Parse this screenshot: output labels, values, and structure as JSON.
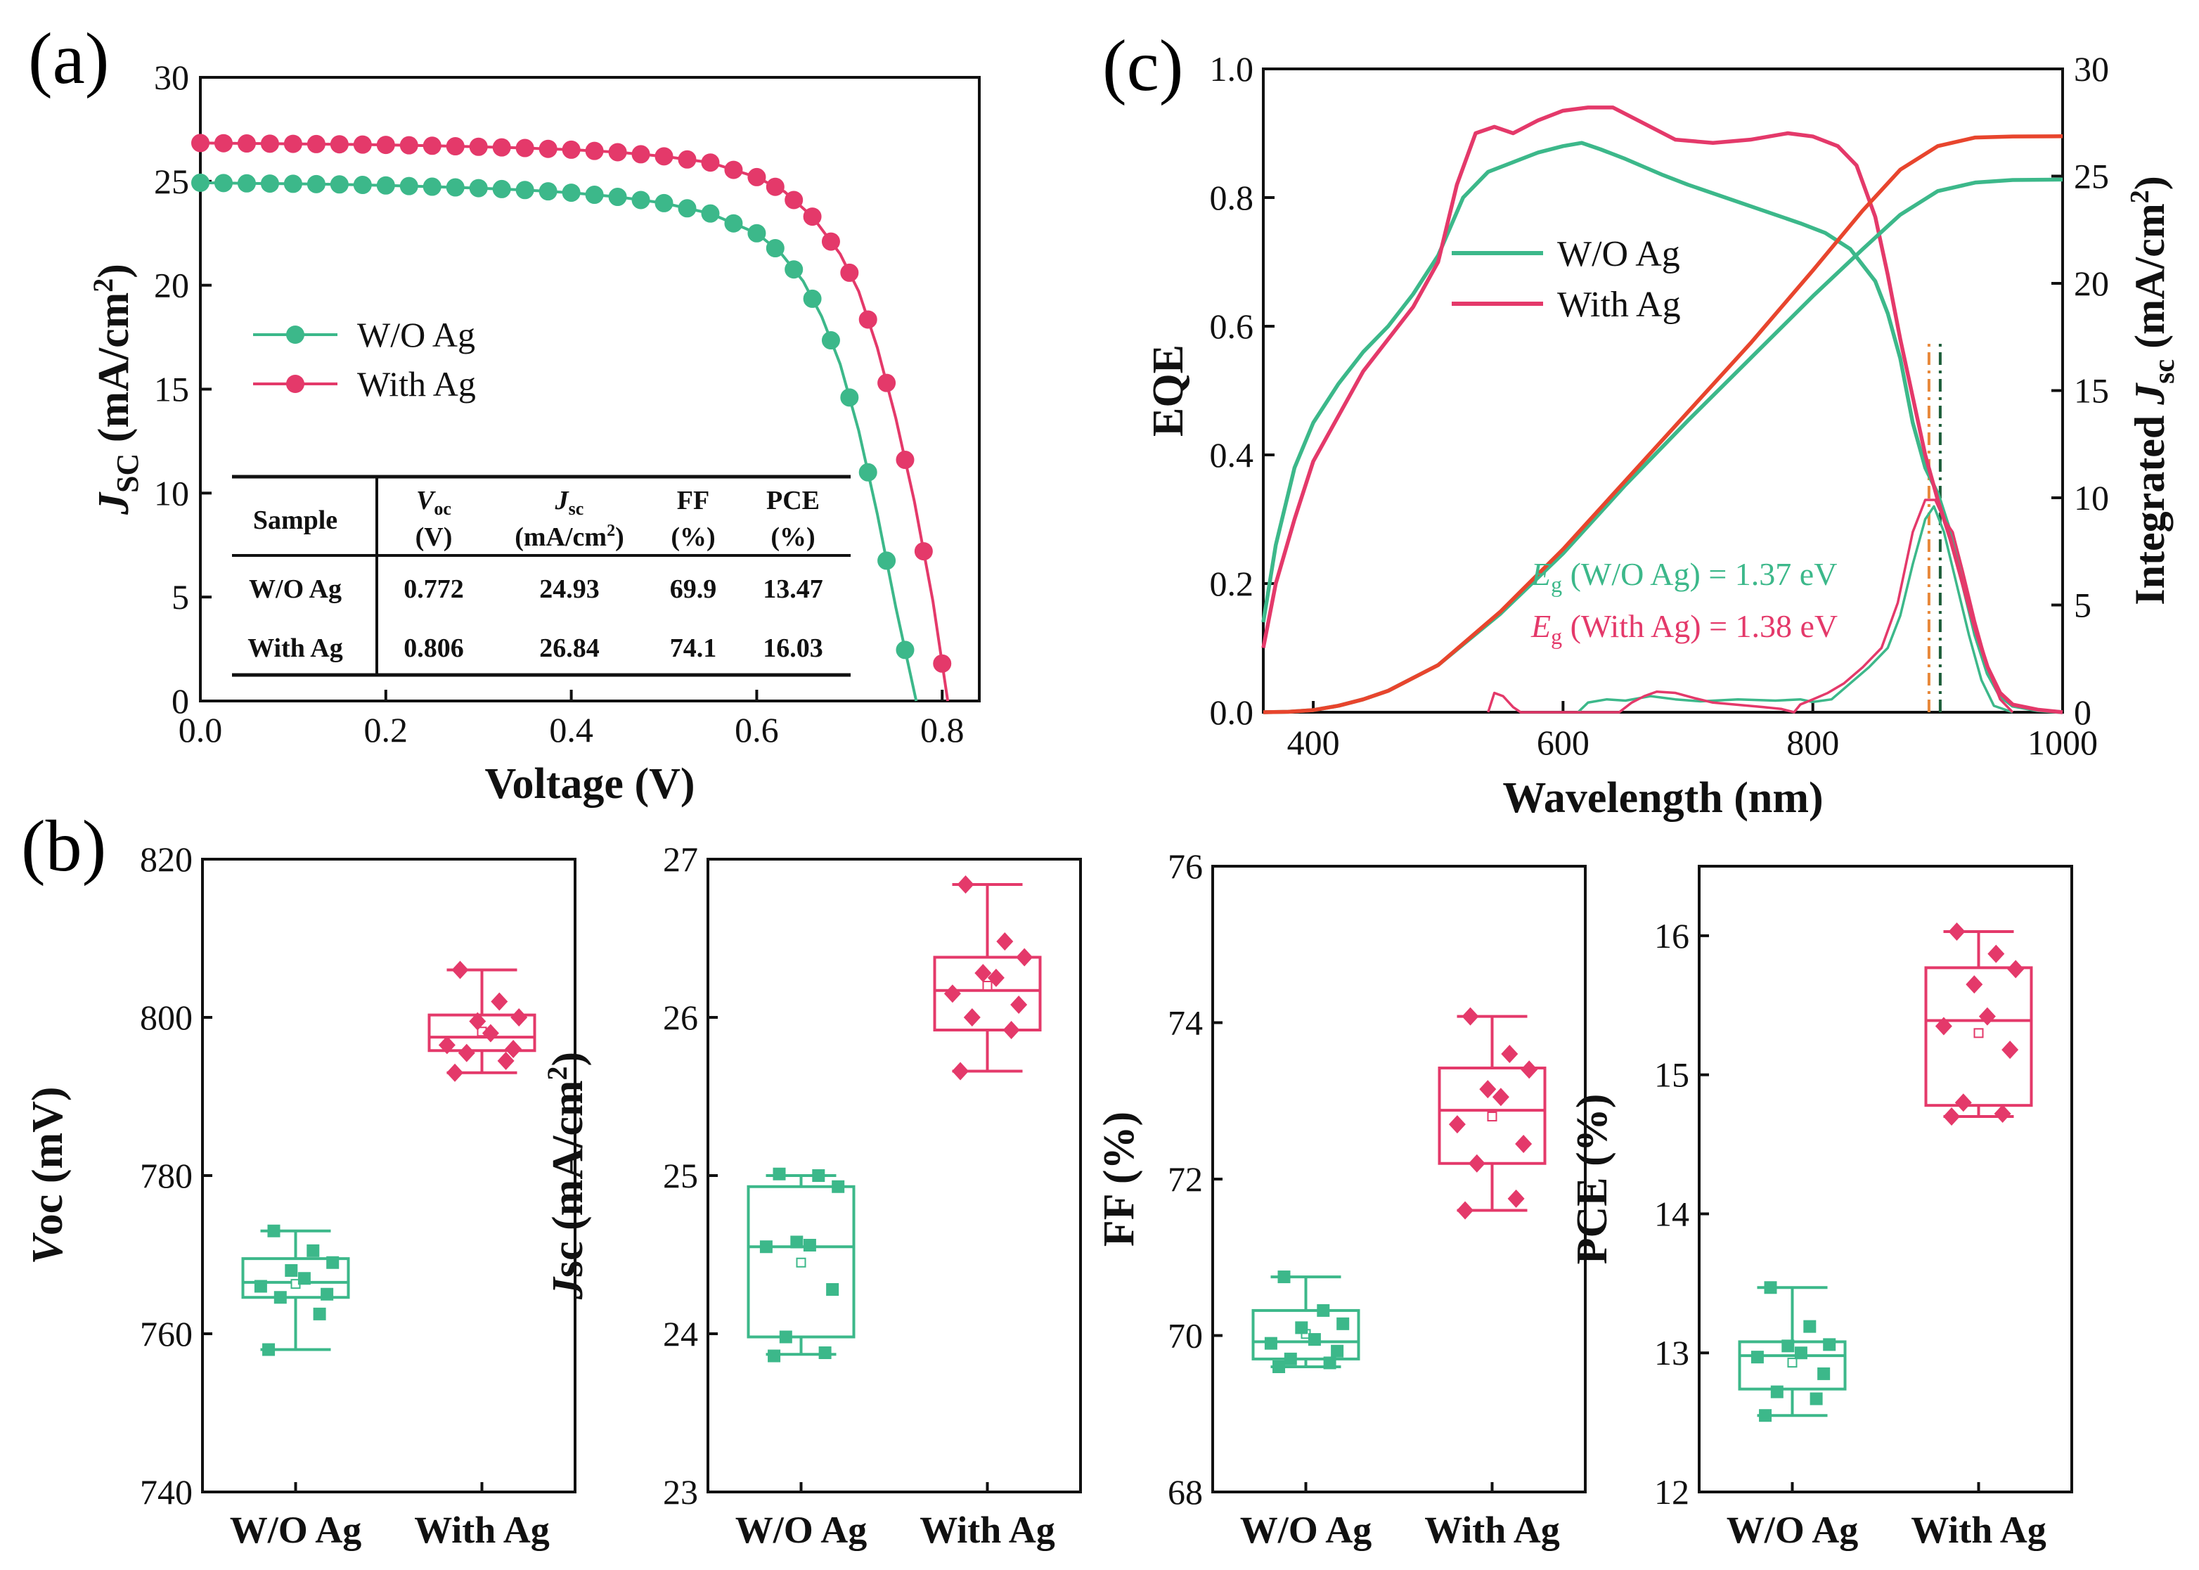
{
  "colors": {
    "wo": "#3cb88a",
    "with": "#e4396a",
    "intj": "#e8452d",
    "eg_with": "#e8883a",
    "eg_wo": "#1d5e3a",
    "text": "#111111"
  },
  "panel_labels": {
    "a": "(a)",
    "b": "(b)",
    "c": "(c)"
  },
  "chart_data": [
    {
      "id": "a",
      "type": "line",
      "title": "",
      "xlabel": "Voltage (V)",
      "ylabel_main": "J",
      "ylabel_sub": "SC",
      "ylabel_unit": " (mA/cm",
      "ylabel_sup": "2",
      "ylabel_tail": ")",
      "xlim": [
        0,
        0.84
      ],
      "ylim": [
        0,
        30
      ],
      "xticks": [
        0.0,
        0.2,
        0.4,
        0.6,
        0.8
      ],
      "xtick_labels": [
        "0.0",
        "0.2",
        "0.4",
        "0.6",
        "0.8"
      ],
      "yticks": [
        0,
        5,
        10,
        15,
        20,
        25,
        30
      ],
      "ytick_labels": [
        "0",
        "5",
        "10",
        "15",
        "20",
        "25",
        "30"
      ],
      "legend": [
        "W/O Ag",
        "With Ag"
      ],
      "series": [
        {
          "name": "W/O Ag",
          "color_key": "wo",
          "jsc": 24.93,
          "voc": 0.772,
          "x": [
            0.0,
            0.05,
            0.1,
            0.15,
            0.2,
            0.25,
            0.3,
            0.35,
            0.4,
            0.45,
            0.5,
            0.55,
            0.6,
            0.625,
            0.65,
            0.67,
            0.69,
            0.71,
            0.73,
            0.75,
            0.772
          ],
          "y": [
            24.93,
            24.9,
            24.88,
            24.85,
            24.8,
            24.74,
            24.67,
            24.58,
            24.45,
            24.25,
            23.95,
            23.45,
            22.5,
            21.6,
            20.2,
            18.5,
            16.2,
            13.0,
            9.0,
            4.5,
            0.0
          ]
        },
        {
          "name": "With Ag",
          "color_key": "with",
          "jsc": 26.84,
          "voc": 0.806,
          "x": [
            0.0,
            0.05,
            0.1,
            0.15,
            0.2,
            0.25,
            0.3,
            0.35,
            0.4,
            0.45,
            0.5,
            0.55,
            0.6,
            0.63,
            0.66,
            0.69,
            0.71,
            0.73,
            0.75,
            0.77,
            0.79,
            0.806
          ],
          "y": [
            26.84,
            26.82,
            26.8,
            26.78,
            26.75,
            26.71,
            26.66,
            26.6,
            26.52,
            26.4,
            26.2,
            25.9,
            25.2,
            24.5,
            23.3,
            21.5,
            19.7,
            17.0,
            13.6,
            9.6,
            4.8,
            0.0
          ]
        }
      ],
      "table": {
        "header": [
          [
            "Sample",
            ""
          ],
          [
            "V",
            "oc",
            "(V)"
          ],
          [
            "J",
            "sc",
            "(mA/cm",
            "2",
            ")"
          ],
          [
            "FF",
            "(%)"
          ],
          [
            "PCE",
            "(%)"
          ]
        ],
        "rows": [
          [
            "W/O Ag",
            "0.772",
            "24.93",
            "69.9",
            "13.47"
          ],
          [
            "With Ag",
            "0.806",
            "26.84",
            "74.1",
            "16.03"
          ]
        ]
      }
    },
    {
      "id": "c",
      "type": "line",
      "title": "",
      "xlabel": "Wavelength (nm)",
      "ylabel_left": "EQE",
      "ylabel_right_main": "Integrated ",
      "ylabel_right_j": "J",
      "ylabel_right_sub": "sc",
      "ylabel_right_unit": " (mA/cm",
      "ylabel_right_sup": "2",
      "ylabel_right_tail": ")",
      "xlim": [
        360,
        1000
      ],
      "ylim_left": [
        0,
        1.0
      ],
      "ylim_right": [
        0,
        30
      ],
      "xticks": [
        400,
        600,
        800,
        1000
      ],
      "xtick_labels": [
        "400",
        "600",
        "800",
        "1000"
      ],
      "yticks_left": [
        0,
        0.2,
        0.4,
        0.6,
        0.8,
        1.0
      ],
      "ytick_labels_left": [
        "0.0",
        "0.2",
        "0.4",
        "0.6",
        "0.8",
        "1.0"
      ],
      "yticks_right": [
        0,
        5,
        10,
        15,
        20,
        25,
        30
      ],
      "ytick_labels_right": [
        "0",
        "5",
        "10",
        "15",
        "20",
        "25",
        "30"
      ],
      "legend": [
        "W/O Ag",
        "With Ag"
      ],
      "eg_labels": [
        {
          "sym": "E",
          "sub": "g",
          "text": " (W/O Ag) = 1.37 eV",
          "color_key": "wo"
        },
        {
          "sym": "E",
          "sub": "g",
          "text": " (With Ag) = 1.38 eV",
          "color_key": "with"
        }
      ],
      "eg_lines_nm": [
        {
          "x": 893,
          "color_key": "eg_with"
        },
        {
          "x": 902,
          "color_key": "eg_wo"
        }
      ],
      "series": [
        {
          "name": "EQE W/O Ag",
          "color_key": "wo",
          "axis": "left",
          "x": [
            360,
            370,
            385,
            400,
            420,
            440,
            460,
            480,
            500,
            520,
            540,
            560,
            580,
            600,
            615,
            630,
            650,
            680,
            700,
            730,
            760,
            790,
            810,
            830,
            850,
            860,
            870,
            880,
            890,
            900,
            910,
            920,
            930,
            940,
            950,
            960,
            980,
            1000
          ],
          "y": [
            0.14,
            0.26,
            0.38,
            0.45,
            0.51,
            0.56,
            0.6,
            0.65,
            0.71,
            0.8,
            0.84,
            0.855,
            0.87,
            0.88,
            0.885,
            0.875,
            0.86,
            0.835,
            0.82,
            0.8,
            0.78,
            0.76,
            0.745,
            0.72,
            0.67,
            0.62,
            0.55,
            0.45,
            0.38,
            0.34,
            0.28,
            0.2,
            0.12,
            0.06,
            0.025,
            0.01,
            0.003,
            0.0
          ]
        },
        {
          "name": "EQE With Ag",
          "color_key": "with",
          "axis": "left",
          "x": [
            360,
            370,
            385,
            400,
            420,
            440,
            460,
            480,
            500,
            515,
            530,
            545,
            560,
            580,
            600,
            620,
            640,
            660,
            690,
            720,
            750,
            780,
            800,
            820,
            835,
            850,
            860,
            870,
            880,
            890,
            900,
            910,
            920,
            930,
            940,
            950,
            960,
            980,
            1000
          ],
          "y": [
            0.1,
            0.2,
            0.3,
            0.39,
            0.46,
            0.53,
            0.58,
            0.63,
            0.7,
            0.82,
            0.9,
            0.91,
            0.9,
            0.92,
            0.935,
            0.94,
            0.94,
            0.92,
            0.89,
            0.885,
            0.89,
            0.9,
            0.895,
            0.88,
            0.85,
            0.77,
            0.68,
            0.58,
            0.49,
            0.4,
            0.33,
            0.27,
            0.2,
            0.13,
            0.07,
            0.03,
            0.012,
            0.004,
            0.0
          ]
        },
        {
          "name": "Integrated Jsc W/O Ag",
          "color_key": "wo",
          "axis": "right",
          "x": [
            360,
            380,
            400,
            420,
            440,
            460,
            500,
            550,
            600,
            650,
            700,
            750,
            800,
            840,
            870,
            900,
            930,
            960,
            1000
          ],
          "y": [
            0,
            0.02,
            0.1,
            0.3,
            0.6,
            1.0,
            2.2,
            4.6,
            7.4,
            10.6,
            13.6,
            16.5,
            19.4,
            21.6,
            23.2,
            24.3,
            24.7,
            24.82,
            24.84
          ]
        },
        {
          "name": "Integrated Jsc With Ag",
          "color_key": "intj",
          "axis": "right",
          "x": [
            360,
            380,
            400,
            420,
            440,
            460,
            500,
            550,
            600,
            650,
            700,
            750,
            800,
            840,
            870,
            900,
            930,
            960,
            1000
          ],
          "y": [
            0,
            0.02,
            0.1,
            0.3,
            0.6,
            1.0,
            2.2,
            4.7,
            7.6,
            10.8,
            14.0,
            17.2,
            20.6,
            23.4,
            25.3,
            26.4,
            26.8,
            26.85,
            26.86
          ]
        },
        {
          "name": "Derivative W/O Ag",
          "color_key": "wo",
          "axis": "left",
          "x": [
            612,
            620,
            635,
            650,
            670,
            690,
            710,
            740,
            770,
            790,
            800,
            815,
            830,
            845,
            860,
            870,
            880,
            890,
            897,
            905,
            915,
            925,
            935,
            945,
            960
          ],
          "y": [
            0.0,
            0.015,
            0.02,
            0.018,
            0.025,
            0.02,
            0.017,
            0.02,
            0.018,
            0.02,
            0.016,
            0.02,
            0.045,
            0.07,
            0.1,
            0.15,
            0.23,
            0.3,
            0.32,
            0.28,
            0.2,
            0.12,
            0.05,
            0.01,
            0.0
          ]
        },
        {
          "name": "Derivative With Ag",
          "color_key": "with",
          "axis": "left",
          "x": [
            540,
            545,
            552,
            560,
            566,
            645,
            655,
            665,
            675,
            690,
            705,
            720,
            760,
            775,
            785,
            790,
            800,
            812,
            825,
            840,
            855,
            868,
            880,
            890,
            898,
            905,
            912,
            920,
            930,
            940,
            950,
            960
          ],
          "y": [
            0.0,
            0.03,
            0.025,
            0.008,
            0.0,
            0.0,
            0.015,
            0.025,
            0.032,
            0.03,
            0.022,
            0.015,
            0.008,
            0.005,
            0.0,
            0.012,
            0.02,
            0.03,
            0.045,
            0.07,
            0.1,
            0.17,
            0.28,
            0.33,
            0.33,
            0.3,
            0.28,
            0.22,
            0.14,
            0.07,
            0.02,
            0.0
          ]
        }
      ]
    },
    {
      "id": "b1",
      "type": "box",
      "ylabel": "Voc (mV)",
      "ylabel_italic_part": "V",
      "ylabel_rest": "oc (mV)",
      "ylim": [
        740,
        820
      ],
      "yticks": [
        740,
        760,
        780,
        800,
        820
      ],
      "ytick_labels": [
        "740",
        "760",
        "780",
        "800",
        "820"
      ],
      "categories": [
        "W/O Ag",
        "With Ag"
      ],
      "groups": [
        {
          "name": "W/O Ag",
          "color_key": "wo",
          "marker": "square",
          "q1": 764.6,
          "median": 766.5,
          "q3": 769.5,
          "whisker_low": 758,
          "whisker_high": 773,
          "mean": 766.3,
          "points": [
            758,
            762.5,
            764.6,
            765,
            766,
            767,
            768,
            769,
            770.5,
            773
          ]
        },
        {
          "name": "With Ag",
          "color_key": "with",
          "marker": "diamond",
          "q1": 795.8,
          "median": 797.5,
          "q3": 800.3,
          "whisker_low": 793,
          "whisker_high": 806,
          "mean": 798.2,
          "points": [
            793,
            794.5,
            795.5,
            796,
            796.5,
            798,
            799.5,
            800,
            802,
            806
          ]
        }
      ]
    },
    {
      "id": "b2",
      "type": "box",
      "ylabel": "Jsc (mA/cm2)",
      "ylabel_italic_part": "J",
      "ylabel_rest": "sc (mA/cm",
      "ylabel_sup": "2",
      "ylabel_tail": ")",
      "ylim": [
        23,
        27
      ],
      "yticks": [
        23,
        24,
        25,
        26,
        27
      ],
      "ytick_labels": [
        "23",
        "24",
        "25",
        "26",
        "27"
      ],
      "categories": [
        "W/O Ag",
        "With Ag"
      ],
      "groups": [
        {
          "name": "W/O Ag",
          "color_key": "wo",
          "marker": "square",
          "q1": 23.98,
          "median": 24.55,
          "q3": 24.93,
          "whisker_low": 23.87,
          "whisker_high": 25.0,
          "mean": 24.45,
          "points": [
            23.86,
            23.88,
            23.98,
            24.28,
            24.55,
            24.56,
            24.58,
            24.93,
            25.0,
            25.01
          ]
        },
        {
          "name": "With Ag",
          "color_key": "with",
          "marker": "diamond",
          "q1": 25.92,
          "median": 26.17,
          "q3": 26.38,
          "whisker_low": 25.66,
          "whisker_high": 26.84,
          "mean": 26.2,
          "points": [
            25.66,
            25.92,
            26.0,
            26.08,
            26.15,
            26.25,
            26.28,
            26.38,
            26.48,
            26.84
          ]
        }
      ]
    },
    {
      "id": "b3",
      "type": "box",
      "ylabel": "FF (%)",
      "ylim": [
        68,
        76
      ],
      "yticks": [
        68,
        70,
        72,
        74,
        76
      ],
      "ytick_labels": [
        "68",
        "70",
        "72",
        "74",
        "76"
      ],
      "categories": [
        "W/O Ag",
        "With Ag"
      ],
      "groups": [
        {
          "name": "W/O Ag",
          "color_key": "wo",
          "marker": "square",
          "q1": 69.7,
          "median": 69.92,
          "q3": 70.32,
          "whisker_low": 69.6,
          "whisker_high": 70.75,
          "mean": 70.02,
          "points": [
            69.6,
            69.65,
            69.7,
            69.8,
            69.9,
            69.95,
            70.1,
            70.15,
            70.32,
            70.75
          ]
        },
        {
          "name": "With Ag",
          "color_key": "with",
          "marker": "diamond",
          "q1": 72.2,
          "median": 72.88,
          "q3": 73.42,
          "whisker_low": 71.6,
          "whisker_high": 74.08,
          "mean": 72.8,
          "points": [
            71.6,
            71.75,
            72.2,
            72.45,
            72.7,
            73.05,
            73.15,
            73.4,
            73.6,
            74.08
          ]
        }
      ]
    },
    {
      "id": "b4",
      "type": "box",
      "ylabel": "PCE (%)",
      "ylim": [
        12,
        16.5
      ],
      "yticks": [
        12,
        13,
        14,
        15,
        16
      ],
      "ytick_labels": [
        "12",
        "13",
        "14",
        "15",
        "16"
      ],
      "categories": [
        "W/O Ag",
        "With Ag"
      ],
      "groups": [
        {
          "name": "W/O Ag",
          "color_key": "wo",
          "marker": "square",
          "q1": 12.74,
          "median": 12.98,
          "q3": 13.08,
          "whisker_low": 12.55,
          "whisker_high": 13.47,
          "mean": 12.93,
          "points": [
            12.55,
            12.67,
            12.72,
            12.85,
            12.97,
            13.0,
            13.05,
            13.06,
            13.19,
            13.47
          ]
        },
        {
          "name": "With Ag",
          "color_key": "with",
          "marker": "diamond",
          "q1": 14.78,
          "median": 15.39,
          "q3": 15.77,
          "whisker_low": 14.7,
          "whisker_high": 16.03,
          "mean": 15.3,
          "points": [
            14.7,
            14.72,
            14.8,
            15.18,
            15.35,
            15.42,
            15.65,
            15.76,
            15.87,
            16.03
          ]
        }
      ]
    }
  ]
}
